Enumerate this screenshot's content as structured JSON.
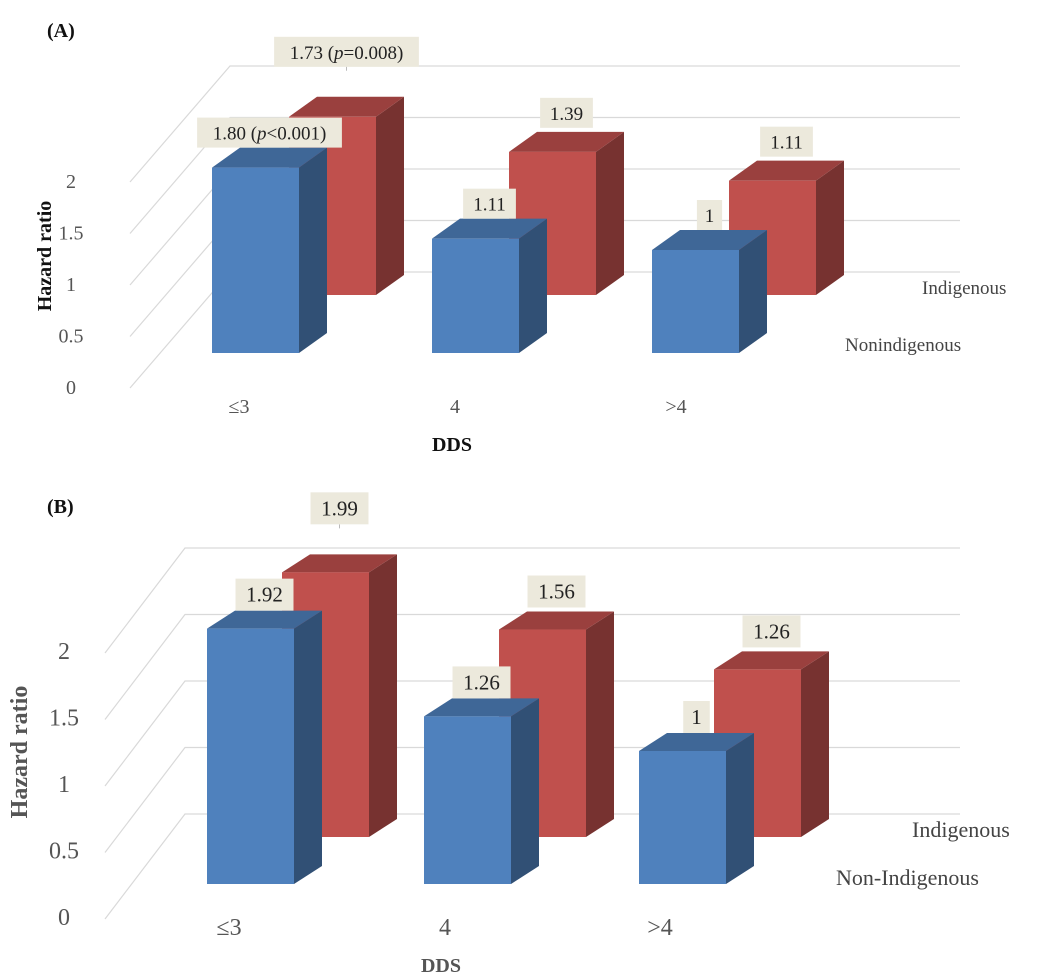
{
  "chart_data": [
    {
      "type": "bar",
      "panel": "(A)",
      "title": "",
      "xlabel": "DDS",
      "ylabel": "Hazard ratio",
      "categories": [
        "≤3",
        "4",
        ">4"
      ],
      "ylim": [
        0,
        2
      ],
      "yticks": [
        "0",
        "0.5",
        "1",
        "1.5",
        "2"
      ],
      "series": [
        {
          "name": "Nonindigenous",
          "color": "#4f81bd",
          "values": [
            1.8,
            1.11,
            1.0
          ],
          "labels": [
            {
              "text": "1.80 (",
              "p": "p",
              "rest": "<0.001)"
            },
            {
              "text": "1.11"
            },
            {
              "text": "1"
            }
          ]
        },
        {
          "name": "Indigenous",
          "color": "#c0504d",
          "values": [
            1.73,
            1.39,
            1.11
          ],
          "labels": [
            {
              "text": "1.73 (",
              "p": "p",
              "rest": "=0.008)"
            },
            {
              "text": "1.39"
            },
            {
              "text": "1.11"
            }
          ]
        }
      ],
      "grid": true
    },
    {
      "type": "bar",
      "panel": "(B)",
      "title": "",
      "xlabel": "DDS",
      "ylabel": "Hazard ratio",
      "categories": [
        "≤3",
        "4",
        ">4"
      ],
      "ylim": [
        0,
        2
      ],
      "yticks": [
        "0",
        "0.5",
        "1",
        "1.5",
        "2"
      ],
      "series": [
        {
          "name": "Non-Indigenous",
          "color": "#4f81bd",
          "values": [
            1.92,
            1.26,
            1.0
          ],
          "labels": [
            {
              "text": "1.92"
            },
            {
              "text": "1.26"
            },
            {
              "text": "1"
            }
          ]
        },
        {
          "name": "Indigenous",
          "color": "#c0504d",
          "values": [
            1.99,
            1.56,
            1.26
          ],
          "labels": [
            {
              "text": "1.99"
            },
            {
              "text": "1.56"
            },
            {
              "text": "1.26"
            }
          ]
        }
      ],
      "grid": true
    }
  ]
}
